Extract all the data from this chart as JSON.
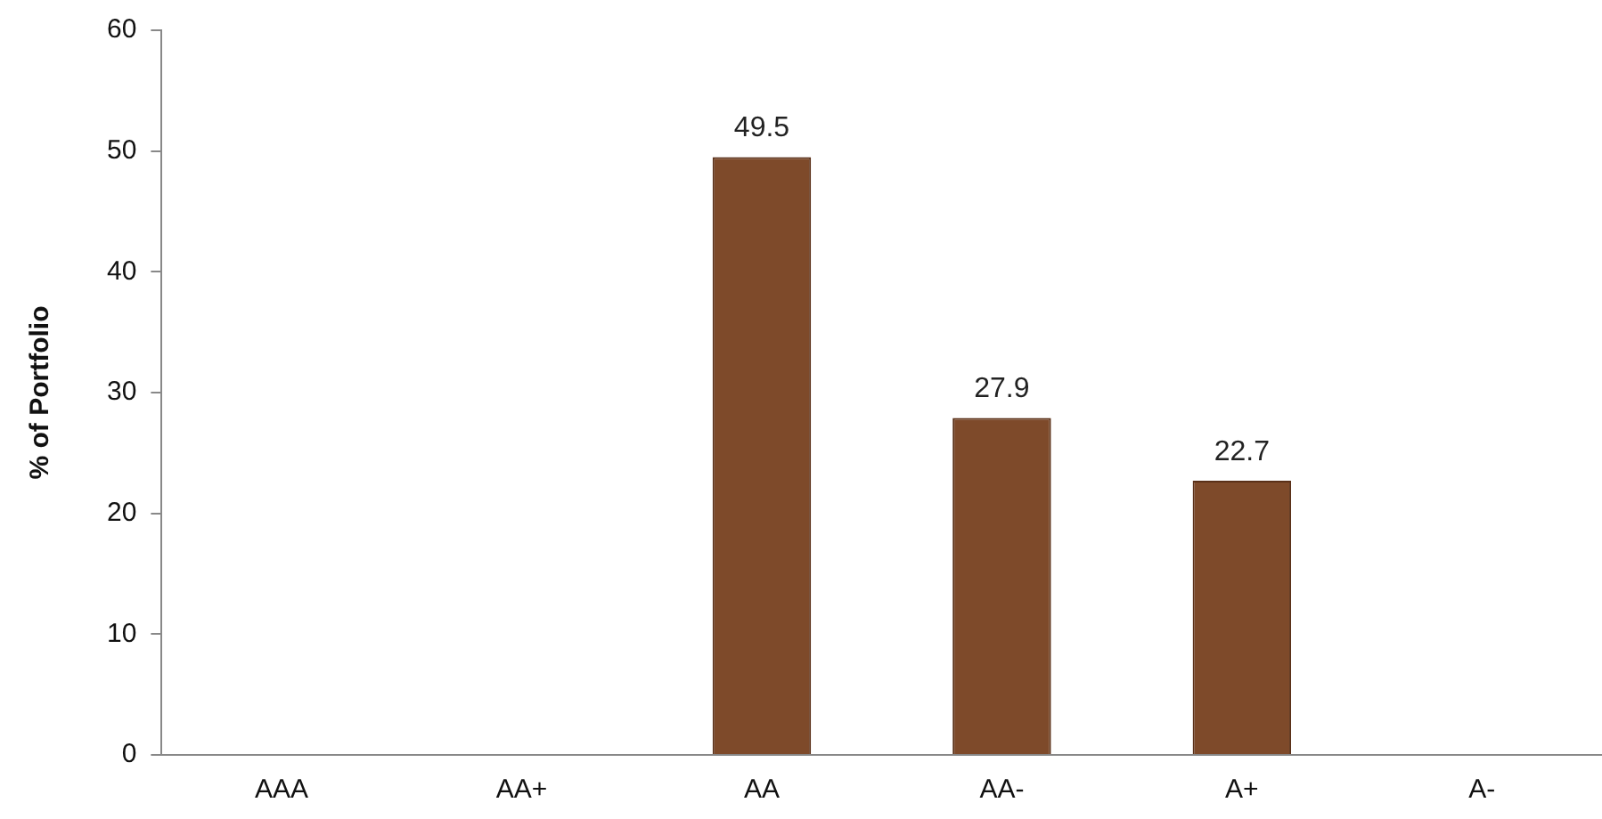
{
  "chart_data": {
    "type": "bar",
    "ylabel": "% of Portfolio",
    "categories": [
      "AAA",
      "AA+",
      "AA",
      "AA-",
      "A+",
      "A-"
    ],
    "values": [
      null,
      null,
      49.5,
      27.9,
      22.7,
      null
    ],
    "value_labels": [
      null,
      null,
      "49.5",
      "27.9",
      "22.7",
      null
    ],
    "color": "#7e4a2a",
    "ylim": [
      0,
      60
    ],
    "yticks": [
      0,
      10,
      20,
      30,
      40,
      50,
      60
    ],
    "grid": false,
    "legend": false
  }
}
